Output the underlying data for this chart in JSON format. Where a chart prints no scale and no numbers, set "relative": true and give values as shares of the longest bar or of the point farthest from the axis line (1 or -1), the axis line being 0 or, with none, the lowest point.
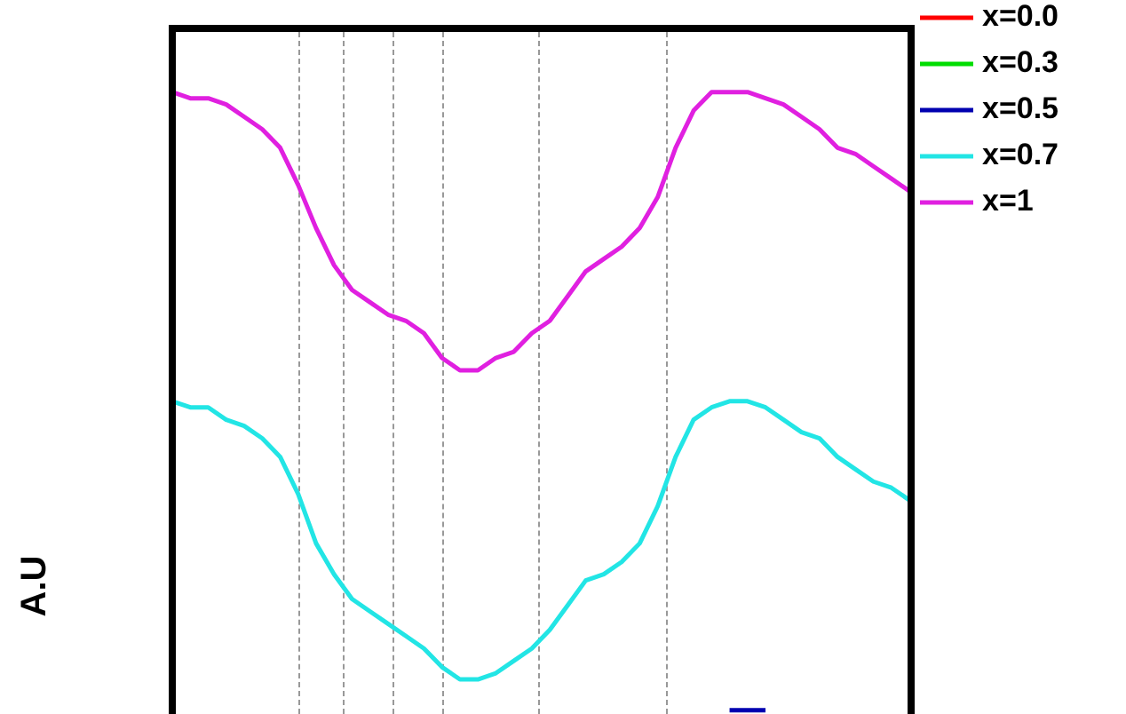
{
  "chart_data": {
    "type": "line",
    "ylabel": "A.U",
    "relative": true,
    "grid": "x",
    "legend": "top right",
    "line_style": "solid",
    "marker": "none",
    "categories": [
      null,
      null,
      null,
      null,
      null,
      null,
      null,
      null,
      null,
      null,
      null,
      null,
      null,
      null,
      null,
      null,
      null,
      null,
      null,
      null,
      null,
      null,
      null,
      null,
      null,
      null,
      null,
      null,
      null,
      null,
      null,
      null,
      null,
      null,
      null,
      null,
      null,
      null,
      null,
      null,
      null,
      null
    ],
    "series": [
      {
        "name": "x=0.0",
        "color": "#ff0000",
        "values": [
          null,
          null,
          null,
          null,
          null,
          null,
          null,
          null,
          null,
          null,
          null,
          null,
          null,
          null,
          null,
          null,
          null,
          null,
          null,
          null,
          null,
          null,
          null,
          null,
          null,
          null,
          null,
          null,
          null,
          null,
          null,
          null,
          null,
          null,
          null,
          null,
          null,
          null,
          null,
          null,
          null,
          null
        ]
      },
      {
        "name": "x=0.3",
        "color": "#00dd00",
        "values": [
          null,
          null,
          null,
          null,
          null,
          null,
          null,
          null,
          null,
          null,
          null,
          null,
          null,
          null,
          null,
          null,
          null,
          null,
          null,
          null,
          null,
          null,
          null,
          null,
          null,
          null,
          null,
          null,
          null,
          null,
          null,
          null,
          null,
          null,
          null,
          null,
          null,
          null,
          null,
          null,
          null,
          null
        ]
      },
      {
        "name": "x=0.5",
        "color": "#0000b0",
        "values": [
          null,
          null,
          null,
          null,
          null,
          null,
          null,
          null,
          null,
          null,
          null,
          null,
          null,
          null,
          null,
          null,
          null,
          null,
          null,
          null,
          null,
          null,
          null,
          null,
          null,
          null,
          null,
          null,
          null,
          null,
          null,
          0,
          0,
          0,
          null,
          null,
          null,
          null,
          null,
          null,
          null,
          null
        ]
      },
      {
        "name": "x=0.7",
        "color": "#22e5e5",
        "values": [
          0.5,
          0.49,
          0.49,
          0.47,
          0.46,
          0.44,
          0.41,
          0.35,
          0.27,
          0.22,
          0.18,
          0.16,
          0.14,
          0.12,
          0.1,
          0.07,
          0.05,
          0.05,
          0.06,
          0.08,
          0.1,
          0.13,
          0.17,
          0.21,
          0.22,
          0.24,
          0.27,
          0.33,
          0.41,
          0.47,
          0.49,
          0.5,
          0.5,
          0.49,
          0.47,
          0.45,
          0.44,
          0.41,
          0.39,
          0.37,
          0.36,
          0.34
        ]
      },
      {
        "name": "x=1",
        "color": "#e020e0",
        "values": [
          1,
          0.99,
          0.99,
          0.98,
          0.96,
          0.94,
          0.91,
          0.85,
          0.78,
          0.72,
          0.68,
          0.66,
          0.64,
          0.63,
          0.61,
          0.57,
          0.55,
          0.55,
          0.57,
          0.58,
          0.61,
          0.63,
          0.67,
          0.71,
          0.73,
          0.75,
          0.78,
          0.83,
          0.91,
          0.97,
          1,
          1,
          1,
          0.99,
          0.98,
          0.96,
          0.94,
          0.91,
          0.9,
          0.88,
          0.86,
          0.84
        ]
      }
    ]
  }
}
